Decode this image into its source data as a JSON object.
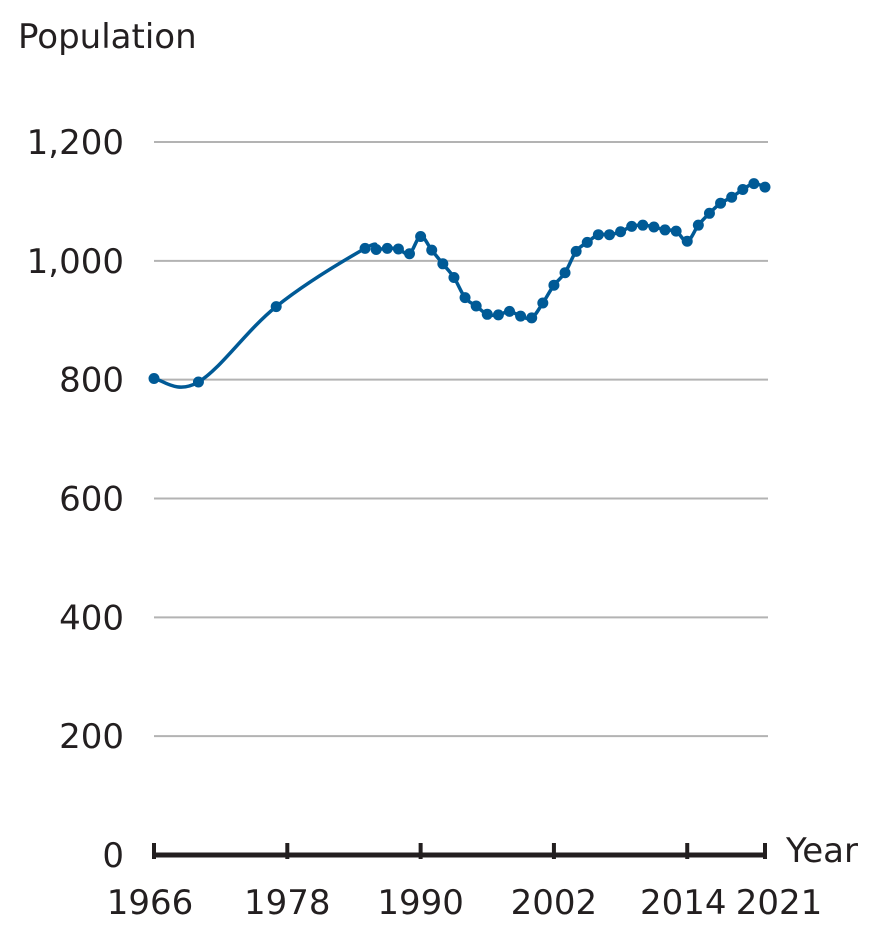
{
  "chart_data": {
    "type": "line",
    "title": "",
    "ylabel": "Population",
    "xlabel": "Year",
    "ylim": [
      0,
      1200
    ],
    "xlim": [
      1966,
      2021
    ],
    "yticks": [
      0,
      200,
      400,
      600,
      800,
      1000,
      1200
    ],
    "ytick_labels": [
      "0",
      "200",
      "400",
      "600",
      "800",
      "1,000",
      "1,200"
    ],
    "xticks": [
      1966,
      1978,
      1990,
      2002,
      2014,
      2021
    ],
    "xtick_labels": [
      "1966",
      "1978",
      "1990",
      "2002",
      "2014",
      "2021"
    ],
    "grid": true,
    "series": [
      {
        "color": "#005a96",
        "x": [
          1966,
          1970,
          1977,
          1985,
          1986,
          1987,
          1988,
          1989,
          1990,
          1991,
          1992,
          1993,
          1994,
          1995,
          1996,
          1997,
          1998,
          1999,
          2000,
          2001,
          2002,
          2003,
          2004,
          2005,
          2006,
          2007,
          2008,
          2009,
          2010,
          2011,
          2012,
          2013,
          2014,
          2015,
          2016,
          2017,
          2018,
          2019,
          2020,
          2021
        ],
        "y": [
          802,
          796,
          923,
          1021,
          1019,
          1021,
          1020,
          1012,
          1041,
          1018,
          995,
          972,
          938,
          924,
          910,
          909,
          915,
          907,
          904,
          929,
          959,
          980,
          1016,
          1031,
          1044,
          1044,
          1049,
          1058,
          1060,
          1057,
          1052,
          1050,
          1033,
          1060,
          1080,
          1097,
          1107,
          1120,
          1130,
          1124
        ]
      }
    ]
  }
}
